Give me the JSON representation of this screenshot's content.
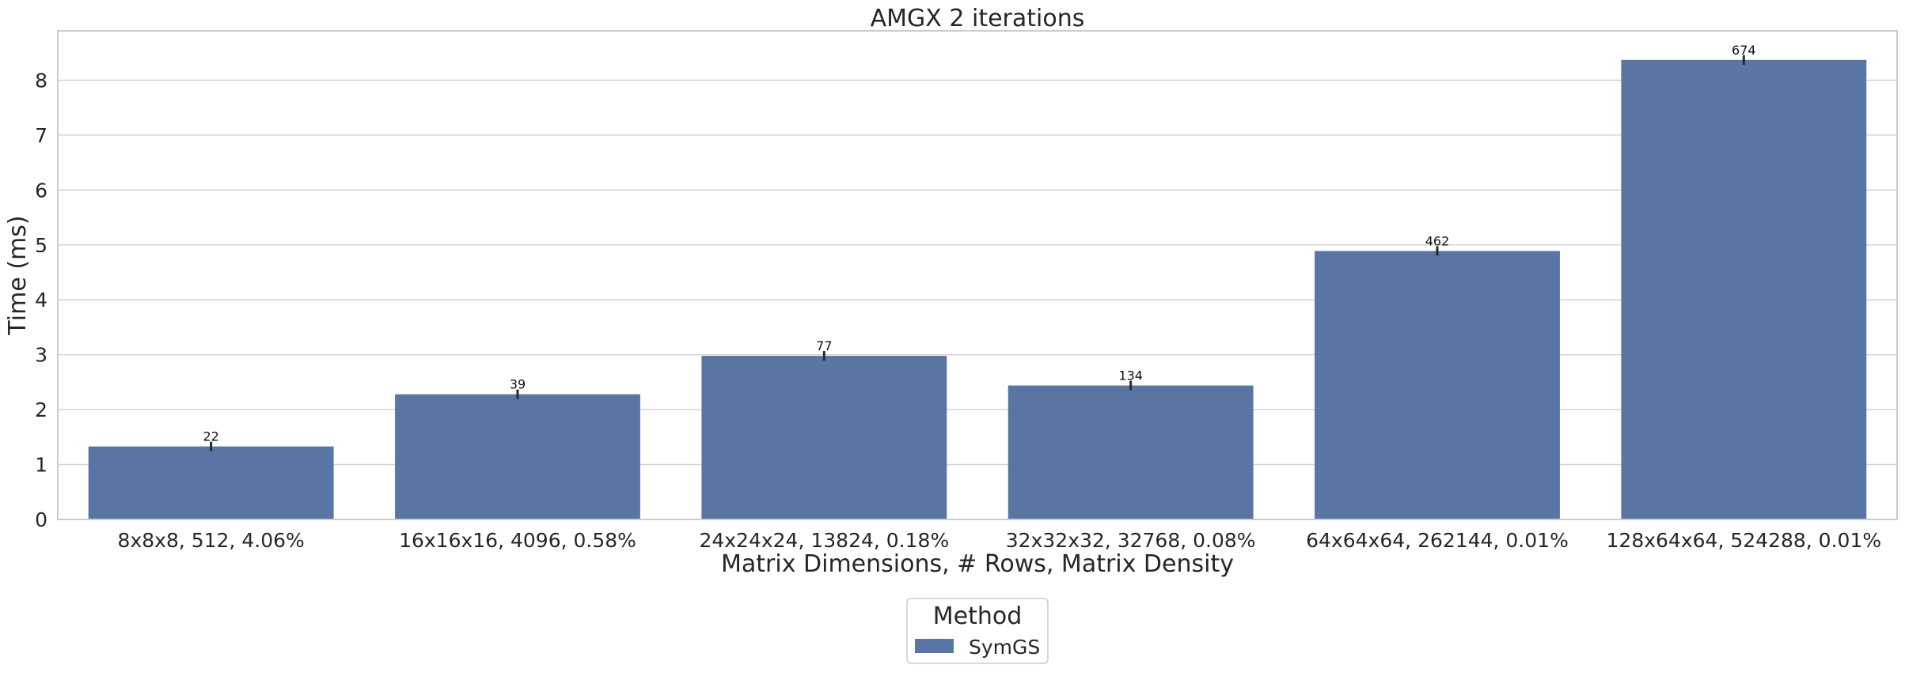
{
  "chart_data": {
    "type": "bar",
    "title": "AMGX 2 iterations",
    "xlabel": "Matrix Dimensions, # Rows, Matrix Density",
    "ylabel": "Time (ms)",
    "categories": [
      "8x8x8, 512, 4.06%",
      "16x16x16, 4096, 0.58%",
      "24x24x24, 13824, 0.18%",
      "32x32x32, 32768, 0.08%",
      "64x64x64, 262144, 0.01%",
      "128x64x64, 524288, 0.01%"
    ],
    "series": [
      {
        "name": "SymGS",
        "color": "#5975a4",
        "values": [
          1.33,
          2.28,
          2.98,
          2.44,
          4.89,
          8.37
        ],
        "data_labels": [
          "22",
          "39",
          "77",
          "134",
          "462",
          "674"
        ]
      }
    ],
    "ylim": [
      0,
      8.9
    ],
    "yticks": [
      0,
      1,
      2,
      3,
      4,
      5,
      6,
      7,
      8
    ],
    "grid": true,
    "legend": {
      "title": "Method",
      "placement": "bottom-center"
    }
  }
}
